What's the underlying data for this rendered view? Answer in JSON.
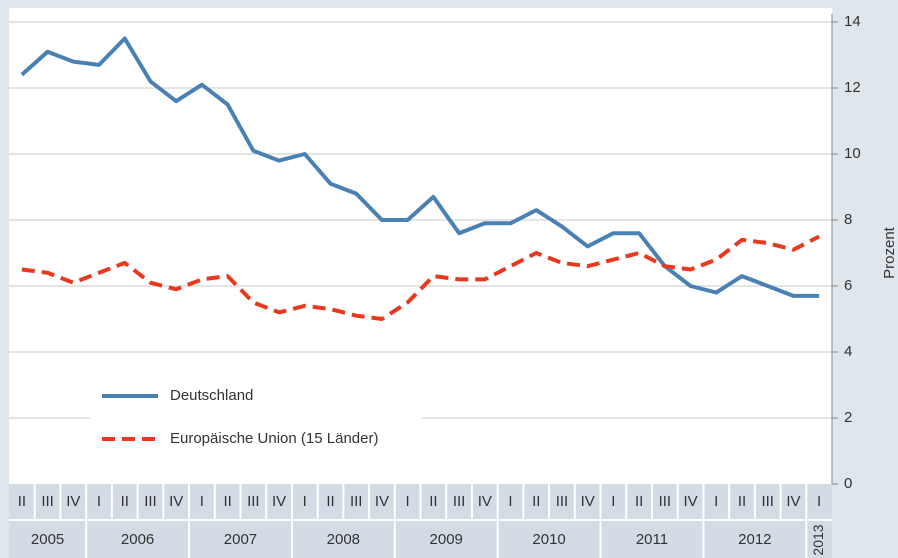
{
  "chart_data": {
    "type": "line",
    "ylabel": "Prozent",
    "years": [
      "2005",
      "2006",
      "2007",
      "2008",
      "2009",
      "2010",
      "2011",
      "2012",
      "2013"
    ],
    "categories": [
      "II",
      "III",
      "IV",
      "I",
      "II",
      "III",
      "IV",
      "I",
      "II",
      "III",
      "IV",
      "I",
      "II",
      "III",
      "IV",
      "I",
      "II",
      "III",
      "IV",
      "I",
      "II",
      "III",
      "IV",
      "I",
      "II",
      "III",
      "IV",
      "I",
      "II",
      "III",
      "IV",
      "I"
    ],
    "series": [
      {
        "name": "Deutschland",
        "color": "#4a81b4",
        "dash": false,
        "values": [
          12.4,
          13.1,
          12.8,
          12.7,
          13.5,
          12.2,
          11.6,
          12.1,
          11.5,
          10.1,
          9.8,
          10.0,
          9.1,
          8.8,
          8.0,
          8.0,
          8.7,
          7.6,
          7.9,
          7.9,
          8.3,
          7.8,
          7.2,
          7.6,
          7.6,
          6.6,
          6.0,
          5.8,
          6.3,
          6.0,
          5.7,
          5.7
        ]
      },
      {
        "name": "Europäische Union (15 Länder)",
        "color": "#e8391f",
        "dash": true,
        "values": [
          6.5,
          6.4,
          6.1,
          6.4,
          6.7,
          6.1,
          5.9,
          6.2,
          6.3,
          5.5,
          5.2,
          5.4,
          5.3,
          5.1,
          5.0,
          5.5,
          6.3,
          6.2,
          6.2,
          6.6,
          7.0,
          6.7,
          6.6,
          6.8,
          7.0,
          6.6,
          6.5,
          6.8,
          7.4,
          7.3,
          7.1,
          7.5
        ]
      }
    ],
    "ylim": [
      0,
      14
    ],
    "yticks": [
      0,
      2,
      4,
      6,
      8,
      10,
      12,
      14
    ],
    "grid": true,
    "legend": "lower left"
  }
}
